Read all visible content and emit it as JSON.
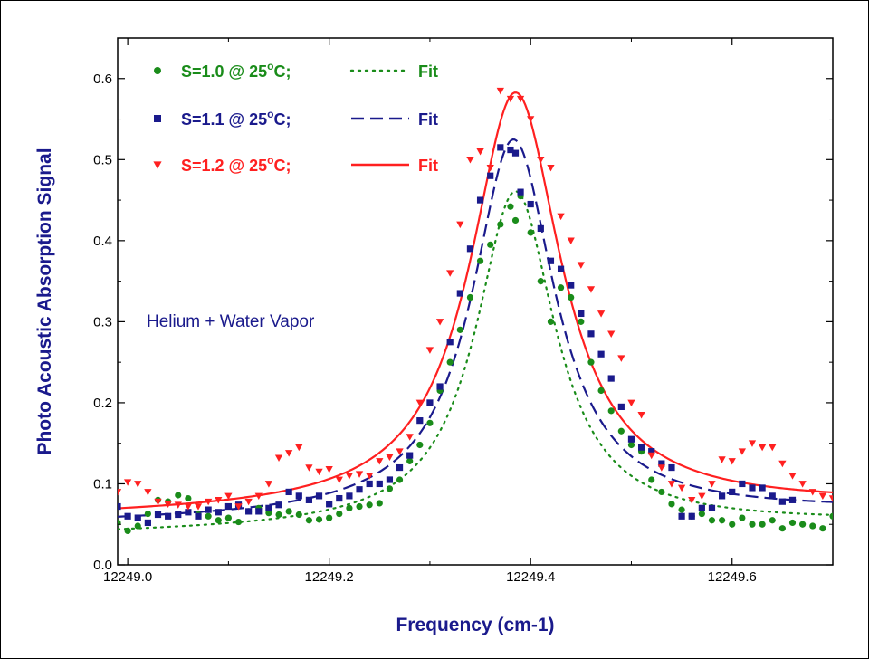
{
  "chart_data": {
    "type": "scatter",
    "xlabel": "Frequency (cm-1)",
    "ylabel": "Photo Acoustic Absorption Signal",
    "xlim": [
      12248.99,
      12249.7
    ],
    "ylim": [
      0.0,
      0.65
    ],
    "x_ticks": [
      12249.0,
      12249.2,
      12249.4,
      12249.6
    ],
    "x_tick_labels": [
      "12249.0",
      "12249.2",
      "12249.4",
      "12249.6"
    ],
    "y_ticks": [
      0.0,
      0.1,
      0.2,
      0.3,
      0.4,
      0.5,
      0.6
    ],
    "y_tick_labels": [
      "0.0",
      "0.1",
      "0.2",
      "0.3",
      "0.4",
      "0.5",
      "0.6"
    ],
    "grid": false,
    "legend_position": "top-left",
    "annotation": "Helium + Water Vapor",
    "annotation_color": "#1a1a8c",
    "axis_label_color": "#1a1a8c",
    "legend": [
      {
        "label": "S=1.0 @ 25",
        "degree": "o",
        "unit": "C;",
        "fit": "Fit",
        "marker": "circle",
        "color": "#1a8c1a",
        "line": "dotted"
      },
      {
        "label": "S=1.1 @ 25",
        "degree": "o",
        "unit": "C;",
        "fit": "Fit",
        "marker": "square",
        "color": "#1a1a8c",
        "line": "dashed"
      },
      {
        "label": "S=1.2 @ 25",
        "degree": "o",
        "unit": "C;",
        "fit": "Fit",
        "marker": "triangle-down",
        "color": "#ff2020",
        "line": "solid"
      }
    ],
    "series": [
      {
        "name": "S=1.0 @ 25°C",
        "color": "#1a8c1a",
        "marker": "circle",
        "points": [
          [
            12248.99,
            0.052
          ],
          [
            12249.0,
            0.042
          ],
          [
            12249.01,
            0.048
          ],
          [
            12249.02,
            0.063
          ],
          [
            12249.03,
            0.08
          ],
          [
            12249.04,
            0.078
          ],
          [
            12249.05,
            0.086
          ],
          [
            12249.06,
            0.082
          ],
          [
            12249.07,
            0.062
          ],
          [
            12249.08,
            0.06
          ],
          [
            12249.09,
            0.055
          ],
          [
            12249.1,
            0.058
          ],
          [
            12249.11,
            0.053
          ],
          [
            12249.12,
            0.066
          ],
          [
            12249.13,
            0.07
          ],
          [
            12249.14,
            0.064
          ],
          [
            12249.15,
            0.062
          ],
          [
            12249.16,
            0.066
          ],
          [
            12249.17,
            0.062
          ],
          [
            12249.18,
            0.055
          ],
          [
            12249.19,
            0.056
          ],
          [
            12249.2,
            0.058
          ],
          [
            12249.21,
            0.063
          ],
          [
            12249.22,
            0.07
          ],
          [
            12249.23,
            0.072
          ],
          [
            12249.24,
            0.074
          ],
          [
            12249.25,
            0.076
          ],
          [
            12249.26,
            0.094
          ],
          [
            12249.27,
            0.105
          ],
          [
            12249.28,
            0.128
          ],
          [
            12249.29,
            0.148
          ],
          [
            12249.3,
            0.175
          ],
          [
            12249.31,
            0.215
          ],
          [
            12249.32,
            0.25
          ],
          [
            12249.33,
            0.29
          ],
          [
            12249.34,
            0.33
          ],
          [
            12249.35,
            0.375
          ],
          [
            12249.36,
            0.395
          ],
          [
            12249.37,
            0.42
          ],
          [
            12249.38,
            0.442
          ],
          [
            12249.385,
            0.425
          ],
          [
            12249.39,
            0.455
          ],
          [
            12249.4,
            0.41
          ],
          [
            12249.41,
            0.35
          ],
          [
            12249.42,
            0.3
          ],
          [
            12249.43,
            0.342
          ],
          [
            12249.44,
            0.33
          ],
          [
            12249.45,
            0.3
          ],
          [
            12249.46,
            0.25
          ],
          [
            12249.47,
            0.215
          ],
          [
            12249.48,
            0.19
          ],
          [
            12249.49,
            0.165
          ],
          [
            12249.5,
            0.148
          ],
          [
            12249.51,
            0.14
          ],
          [
            12249.52,
            0.105
          ],
          [
            12249.53,
            0.09
          ],
          [
            12249.54,
            0.075
          ],
          [
            12249.55,
            0.068
          ],
          [
            12249.56,
            0.06
          ],
          [
            12249.57,
            0.063
          ],
          [
            12249.58,
            0.055
          ],
          [
            12249.59,
            0.055
          ],
          [
            12249.6,
            0.05
          ],
          [
            12249.61,
            0.058
          ],
          [
            12249.62,
            0.05
          ],
          [
            12249.63,
            0.05
          ],
          [
            12249.64,
            0.055
          ],
          [
            12249.65,
            0.045
          ],
          [
            12249.66,
            0.052
          ],
          [
            12249.67,
            0.05
          ],
          [
            12249.68,
            0.048
          ],
          [
            12249.69,
            0.045
          ],
          [
            12249.7,
            0.06
          ]
        ]
      },
      {
        "name": "S=1.1 @ 25°C",
        "color": "#1a1a8c",
        "marker": "square",
        "points": [
          [
            12248.99,
            0.072
          ],
          [
            12249.0,
            0.06
          ],
          [
            12249.01,
            0.058
          ],
          [
            12249.02,
            0.052
          ],
          [
            12249.03,
            0.062
          ],
          [
            12249.04,
            0.06
          ],
          [
            12249.05,
            0.062
          ],
          [
            12249.06,
            0.065
          ],
          [
            12249.07,
            0.06
          ],
          [
            12249.08,
            0.068
          ],
          [
            12249.09,
            0.065
          ],
          [
            12249.1,
            0.072
          ],
          [
            12249.11,
            0.074
          ],
          [
            12249.12,
            0.066
          ],
          [
            12249.13,
            0.066
          ],
          [
            12249.14,
            0.07
          ],
          [
            12249.15,
            0.074
          ],
          [
            12249.16,
            0.09
          ],
          [
            12249.17,
            0.085
          ],
          [
            12249.18,
            0.08
          ],
          [
            12249.19,
            0.085
          ],
          [
            12249.2,
            0.075
          ],
          [
            12249.21,
            0.082
          ],
          [
            12249.22,
            0.085
          ],
          [
            12249.23,
            0.093
          ],
          [
            12249.24,
            0.1
          ],
          [
            12249.25,
            0.1
          ],
          [
            12249.26,
            0.105
          ],
          [
            12249.27,
            0.12
          ],
          [
            12249.28,
            0.135
          ],
          [
            12249.29,
            0.178
          ],
          [
            12249.3,
            0.2
          ],
          [
            12249.31,
            0.22
          ],
          [
            12249.32,
            0.275
          ],
          [
            12249.33,
            0.335
          ],
          [
            12249.34,
            0.39
          ],
          [
            12249.35,
            0.45
          ],
          [
            12249.36,
            0.48
          ],
          [
            12249.37,
            0.515
          ],
          [
            12249.38,
            0.512
          ],
          [
            12249.385,
            0.508
          ],
          [
            12249.39,
            0.46
          ],
          [
            12249.4,
            0.445
          ],
          [
            12249.41,
            0.415
          ],
          [
            12249.42,
            0.375
          ],
          [
            12249.43,
            0.365
          ],
          [
            12249.44,
            0.345
          ],
          [
            12249.45,
            0.31
          ],
          [
            12249.46,
            0.285
          ],
          [
            12249.47,
            0.26
          ],
          [
            12249.48,
            0.23
          ],
          [
            12249.49,
            0.195
          ],
          [
            12249.5,
            0.155
          ],
          [
            12249.51,
            0.145
          ],
          [
            12249.52,
            0.14
          ],
          [
            12249.53,
            0.125
          ],
          [
            12249.54,
            0.12
          ],
          [
            12249.55,
            0.06
          ],
          [
            12249.56,
            0.06
          ],
          [
            12249.57,
            0.07
          ],
          [
            12249.58,
            0.07
          ],
          [
            12249.59,
            0.085
          ],
          [
            12249.6,
            0.09
          ],
          [
            12249.61,
            0.1
          ],
          [
            12249.62,
            0.095
          ],
          [
            12249.63,
            0.095
          ],
          [
            12249.64,
            0.085
          ],
          [
            12249.65,
            0.078
          ],
          [
            12249.66,
            0.08
          ]
        ]
      },
      {
        "name": "S=1.2 @ 25°C",
        "color": "#ff2020",
        "marker": "triangle-down",
        "points": [
          [
            12248.99,
            0.09
          ],
          [
            12249.0,
            0.102
          ],
          [
            12249.01,
            0.1
          ],
          [
            12249.02,
            0.09
          ],
          [
            12249.03,
            0.078
          ],
          [
            12249.04,
            0.075
          ],
          [
            12249.05,
            0.074
          ],
          [
            12249.06,
            0.072
          ],
          [
            12249.07,
            0.072
          ],
          [
            12249.08,
            0.078
          ],
          [
            12249.09,
            0.08
          ],
          [
            12249.1,
            0.085
          ],
          [
            12249.11,
            0.072
          ],
          [
            12249.12,
            0.078
          ],
          [
            12249.13,
            0.085
          ],
          [
            12249.14,
            0.1
          ],
          [
            12249.15,
            0.132
          ],
          [
            12249.16,
            0.138
          ],
          [
            12249.17,
            0.145
          ],
          [
            12249.18,
            0.12
          ],
          [
            12249.19,
            0.115
          ],
          [
            12249.2,
            0.118
          ],
          [
            12249.21,
            0.105
          ],
          [
            12249.22,
            0.11
          ],
          [
            12249.23,
            0.112
          ],
          [
            12249.24,
            0.11
          ],
          [
            12249.25,
            0.128
          ],
          [
            12249.26,
            0.133
          ],
          [
            12249.27,
            0.14
          ],
          [
            12249.28,
            0.158
          ],
          [
            12249.29,
            0.2
          ],
          [
            12249.3,
            0.265
          ],
          [
            12249.31,
            0.3
          ],
          [
            12249.32,
            0.36
          ],
          [
            12249.33,
            0.42
          ],
          [
            12249.34,
            0.5
          ],
          [
            12249.35,
            0.51
          ],
          [
            12249.36,
            0.49
          ],
          [
            12249.37,
            0.585
          ],
          [
            12249.38,
            0.575
          ],
          [
            12249.39,
            0.575
          ],
          [
            12249.4,
            0.55
          ],
          [
            12249.41,
            0.5
          ],
          [
            12249.42,
            0.49
          ],
          [
            12249.43,
            0.43
          ],
          [
            12249.44,
            0.4
          ],
          [
            12249.45,
            0.37
          ],
          [
            12249.46,
            0.34
          ],
          [
            12249.47,
            0.31
          ],
          [
            12249.48,
            0.285
          ],
          [
            12249.49,
            0.255
          ],
          [
            12249.5,
            0.2
          ],
          [
            12249.51,
            0.185
          ],
          [
            12249.52,
            0.135
          ],
          [
            12249.53,
            0.12
          ],
          [
            12249.54,
            0.1
          ],
          [
            12249.55,
            0.095
          ],
          [
            12249.56,
            0.08
          ],
          [
            12249.57,
            0.085
          ],
          [
            12249.58,
            0.1
          ],
          [
            12249.59,
            0.13
          ],
          [
            12249.6,
            0.128
          ],
          [
            12249.61,
            0.14
          ],
          [
            12249.62,
            0.15
          ],
          [
            12249.63,
            0.145
          ],
          [
            12249.64,
            0.145
          ],
          [
            12249.65,
            0.125
          ],
          [
            12249.66,
            0.11
          ],
          [
            12249.67,
            0.1
          ],
          [
            12249.68,
            0.09
          ],
          [
            12249.69,
            0.085
          ],
          [
            12249.7,
            0.082
          ]
        ]
      }
    ],
    "fits": [
      {
        "series": "S=1.0 @ 25°C",
        "color": "#1a8c1a",
        "line": "dotted",
        "baseline": 0.038,
        "amplitude": 0.415,
        "center": 12249.385,
        "hwhm": 0.048,
        "slope": 0.02
      },
      {
        "series": "S=1.1 @ 25°C",
        "color": "#1a1a8c",
        "line": "dashed",
        "baseline": 0.052,
        "amplitude": 0.465,
        "center": 12249.383,
        "hwhm": 0.05,
        "slope": 0.02
      },
      {
        "series": "S=1.2 @ 25°C",
        "color": "#ff2020",
        "line": "solid",
        "baseline": 0.06,
        "amplitude": 0.515,
        "center": 12249.385,
        "hwhm": 0.055,
        "slope": 0.02
      }
    ]
  }
}
